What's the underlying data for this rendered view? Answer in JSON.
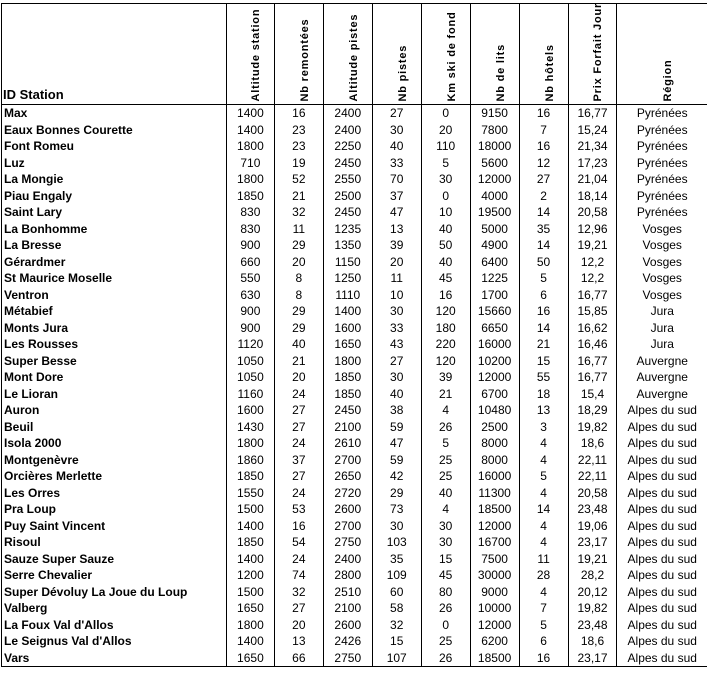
{
  "table": {
    "headers": [
      "ID Station",
      "Altitude station",
      "Nb remontées",
      "Altitude pistes",
      "Nb pistes",
      "Km ski de fond",
      "Nb de lits",
      "Nb hôtels",
      "Prix Forfait Jour",
      "Région"
    ],
    "rows": [
      [
        "Max",
        "1400",
        "16",
        "2400",
        "27",
        "0",
        "9150",
        "16",
        "16,77",
        "Pyrénées"
      ],
      [
        "Eaux Bonnes Courette",
        "1400",
        "23",
        "2400",
        "30",
        "20",
        "7800",
        "7",
        "15,24",
        "Pyrénées"
      ],
      [
        "Font Romeu",
        "1800",
        "23",
        "2250",
        "40",
        "110",
        "18000",
        "16",
        "21,34",
        "Pyrénées"
      ],
      [
        "Luz",
        "710",
        "19",
        "2450",
        "33",
        "5",
        "5600",
        "12",
        "17,23",
        "Pyrénées"
      ],
      [
        "La Mongie",
        "1800",
        "52",
        "2550",
        "70",
        "30",
        "12000",
        "27",
        "21,04",
        "Pyrénées"
      ],
      [
        "Piau Engaly",
        "1850",
        "21",
        "2500",
        "37",
        "0",
        "4000",
        "2",
        "18,14",
        "Pyrénées"
      ],
      [
        "Saint Lary",
        "830",
        "32",
        "2450",
        "47",
        "10",
        "19500",
        "14",
        "20,58",
        "Pyrénées"
      ],
      [
        "La Bonhomme",
        "830",
        "11",
        "1235",
        "13",
        "40",
        "5000",
        "35",
        "12,96",
        "Vosges"
      ],
      [
        "La Bresse",
        "900",
        "29",
        "1350",
        "39",
        "50",
        "4900",
        "14",
        "19,21",
        "Vosges"
      ],
      [
        "Gérardmer",
        "660",
        "20",
        "1150",
        "20",
        "40",
        "6400",
        "50",
        "12,2",
        "Vosges"
      ],
      [
        "St Maurice Moselle",
        "550",
        "8",
        "1250",
        "11",
        "45",
        "1225",
        "5",
        "12,2",
        "Vosges"
      ],
      [
        "Ventron",
        "630",
        "8",
        "1110",
        "10",
        "16",
        "1700",
        "6",
        "16,77",
        "Vosges"
      ],
      [
        "Métabief",
        "900",
        "29",
        "1400",
        "30",
        "120",
        "15660",
        "16",
        "15,85",
        "Jura"
      ],
      [
        "Monts Jura",
        "900",
        "29",
        "1600",
        "33",
        "180",
        "6650",
        "14",
        "16,62",
        "Jura"
      ],
      [
        "Les Rousses",
        "1120",
        "40",
        "1650",
        "43",
        "220",
        "16000",
        "21",
        "16,46",
        "Jura"
      ],
      [
        "Super Besse",
        "1050",
        "21",
        "1800",
        "27",
        "120",
        "10200",
        "15",
        "16,77",
        "Auvergne"
      ],
      [
        "Mont Dore",
        "1050",
        "20",
        "1850",
        "30",
        "39",
        "12000",
        "55",
        "16,77",
        "Auvergne"
      ],
      [
        "Le Lioran",
        "1160",
        "24",
        "1850",
        "40",
        "21",
        "6700",
        "18",
        "15,4",
        "Auvergne"
      ],
      [
        "Auron",
        "1600",
        "27",
        "2450",
        "38",
        "4",
        "10480",
        "13",
        "18,29",
        "Alpes du sud"
      ],
      [
        "Beuil",
        "1430",
        "27",
        "2100",
        "59",
        "26",
        "2500",
        "3",
        "19,82",
        "Alpes du sud"
      ],
      [
        "Isola 2000",
        "1800",
        "24",
        "2610",
        "47",
        "5",
        "8000",
        "4",
        "18,6",
        "Alpes du sud"
      ],
      [
        "Montgenèvre",
        "1860",
        "37",
        "2700",
        "59",
        "25",
        "8000",
        "4",
        "22,11",
        "Alpes du sud"
      ],
      [
        "Orcières Merlette",
        "1850",
        "27",
        "2650",
        "42",
        "25",
        "16000",
        "5",
        "22,11",
        "Alpes du sud"
      ],
      [
        "Les Orres",
        "1550",
        "24",
        "2720",
        "29",
        "40",
        "11300",
        "4",
        "20,58",
        "Alpes du sud"
      ],
      [
        "Pra Loup",
        "1500",
        "53",
        "2600",
        "73",
        "4",
        "18500",
        "14",
        "23,48",
        "Alpes du sud"
      ],
      [
        "Puy Saint Vincent",
        "1400",
        "16",
        "2700",
        "30",
        "30",
        "12000",
        "4",
        "19,06",
        "Alpes du sud"
      ],
      [
        "Risoul",
        "1850",
        "54",
        "2750",
        "103",
        "30",
        "16700",
        "4",
        "23,17",
        "Alpes du sud"
      ],
      [
        "Sauze Super Sauze",
        "1400",
        "24",
        "2400",
        "35",
        "15",
        "7500",
        "11",
        "19,21",
        "Alpes du sud"
      ],
      [
        "Serre Chevalier",
        "1200",
        "74",
        "2800",
        "109",
        "45",
        "30000",
        "28",
        "28,2",
        "Alpes du sud"
      ],
      [
        "Super Dévoluy La Joue du Loup",
        "1500",
        "32",
        "2510",
        "60",
        "80",
        "9000",
        "4",
        "20,12",
        "Alpes du sud"
      ],
      [
        "Valberg",
        "1650",
        "27",
        "2100",
        "58",
        "26",
        "10000",
        "7",
        "19,82",
        "Alpes du sud"
      ],
      [
        "La Foux Val d'Allos",
        "1800",
        "20",
        "2600",
        "32",
        "0",
        "12000",
        "5",
        "23,48",
        "Alpes du sud"
      ],
      [
        "Le Seignus Val d'Allos",
        "1400",
        "13",
        "2426",
        "15",
        "25",
        "6200",
        "6",
        "18,6",
        "Alpes du sud"
      ],
      [
        "Vars",
        "1650",
        "66",
        "2750",
        "107",
        "26",
        "18500",
        "16",
        "23,17",
        "Alpes du sud"
      ]
    ]
  }
}
